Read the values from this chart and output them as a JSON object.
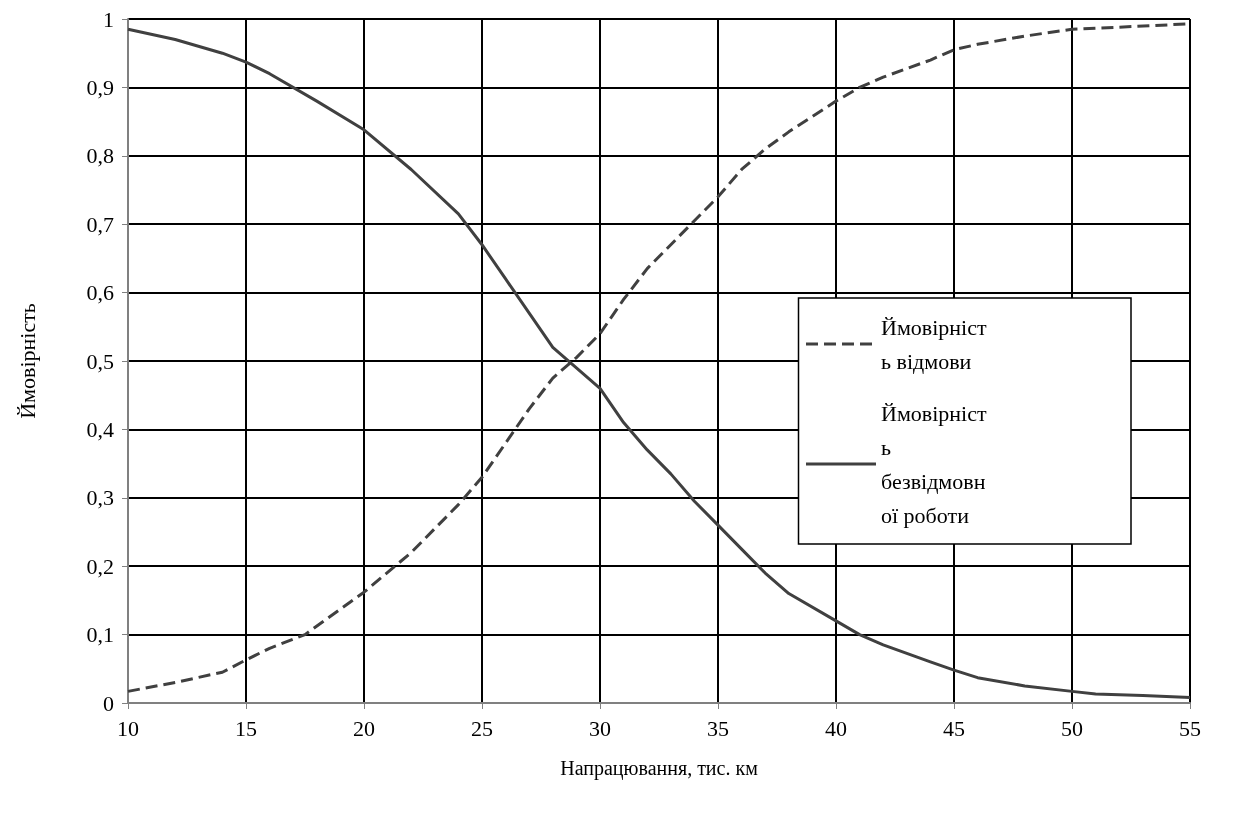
{
  "chart_data": {
    "type": "line",
    "xlabel": "Напрацювання, тис. км",
    "ylabel": "Ймовірність",
    "xlim": [
      10,
      55
    ],
    "xticks": [
      10,
      15,
      20,
      25,
      30,
      35,
      40,
      45,
      50,
      55
    ],
    "ylim": [
      0,
      1
    ],
    "yticks": [
      0,
      {
        "value": 0.1,
        "label": "0,1"
      },
      {
        "value": 0.2,
        "label": "0,2"
      },
      {
        "value": 0.3,
        "label": "0,3"
      },
      {
        "value": 0.4,
        "label": "0,4"
      },
      {
        "value": 0.5,
        "label": "0,5"
      },
      {
        "value": 0.6,
        "label": "0,6"
      },
      {
        "value": 0.7,
        "label": "0,7"
      },
      {
        "value": 0.8,
        "label": "0,8"
      },
      {
        "value": 0.9,
        "label": "0,9"
      },
      1
    ],
    "grid": true,
    "legend": "right",
    "marker": "none",
    "series": [
      {
        "name": "Ймовірність відмови",
        "color": "#404040",
        "line_style": "dashed",
        "x": [
          10,
          12,
          14,
          15,
          16,
          17.5,
          20,
          22,
          24,
          25,
          26,
          27,
          28,
          29,
          30,
          31,
          32,
          33,
          34,
          35,
          36,
          37,
          38,
          40,
          41,
          42,
          44,
          45,
          46,
          48,
          50,
          52,
          55
        ],
        "values": [
          0.017,
          0.03,
          0.045,
          0.063,
          0.08,
          0.1,
          0.162,
          0.22,
          0.29,
          0.33,
          0.38,
          0.43,
          0.475,
          0.505,
          0.54,
          0.59,
          0.635,
          0.67,
          0.705,
          0.74,
          0.78,
          0.81,
          0.835,
          0.88,
          0.9,
          0.915,
          0.94,
          0.955,
          0.963,
          0.975,
          0.985,
          0.988,
          0.993
        ]
      },
      {
        "name": "Ймовірність безвідмовної роботи",
        "color": "#404040",
        "line_style": "solid",
        "x": [
          10,
          12,
          14,
          15,
          16,
          18,
          20,
          22,
          24,
          25,
          26,
          27,
          28,
          29,
          30,
          31,
          32,
          33,
          34,
          35,
          36,
          37,
          38,
          40,
          41,
          42,
          44,
          45,
          46,
          48,
          50,
          51,
          53,
          55
        ],
        "values": [
          0.985,
          0.97,
          0.95,
          0.937,
          0.92,
          0.88,
          0.838,
          0.78,
          0.715,
          0.67,
          0.62,
          0.57,
          0.52,
          0.49,
          0.46,
          0.41,
          0.37,
          0.335,
          0.295,
          0.26,
          0.225,
          0.19,
          0.16,
          0.12,
          0.1,
          0.085,
          0.06,
          0.048,
          0.037,
          0.025,
          0.017,
          0.013,
          0.011,
          0.008
        ]
      }
    ]
  }
}
